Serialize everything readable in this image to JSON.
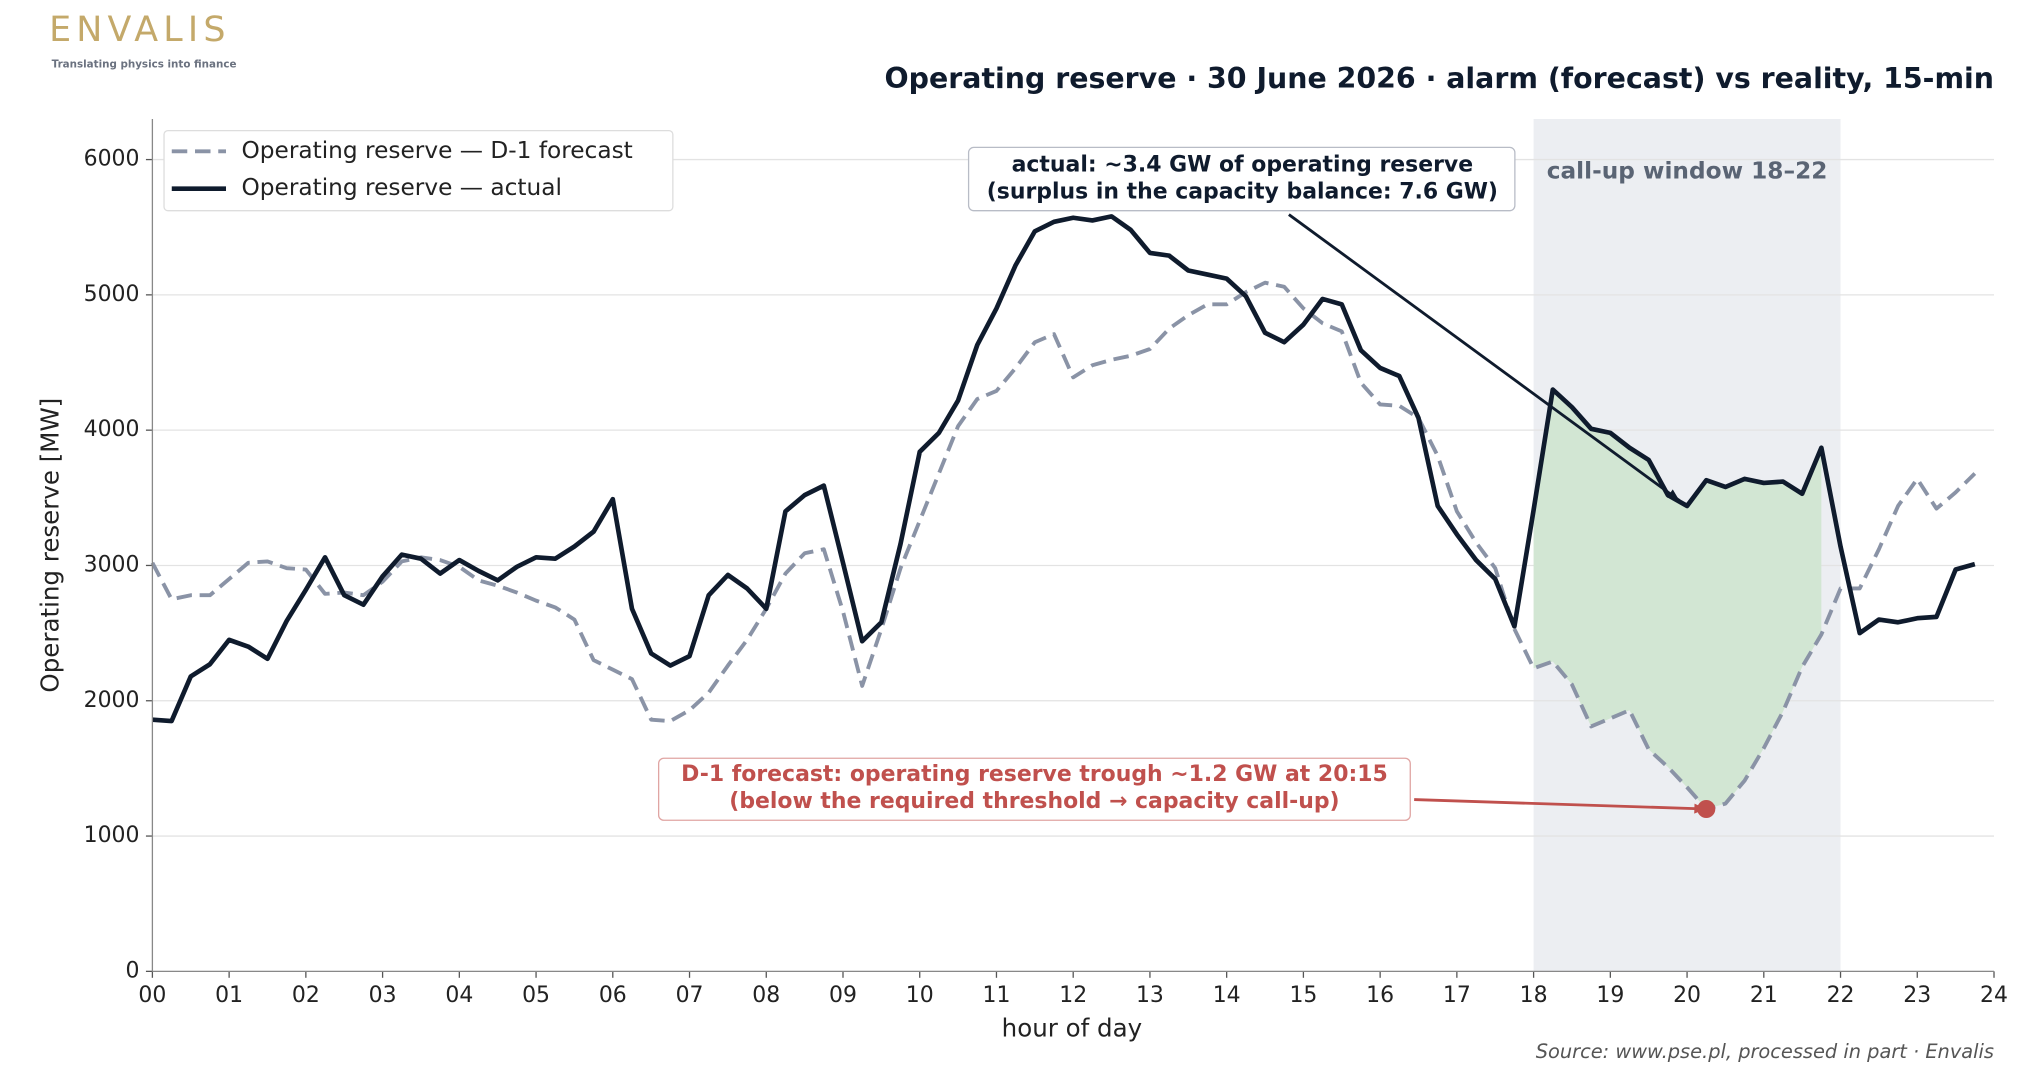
{
  "brand": {
    "name": "ENVALIS",
    "tagline": "Translating physics into finance"
  },
  "chart_data": {
    "type": "line",
    "title": "Operating reserve · 30 June 2026 · alarm (forecast) vs reality, 15-min",
    "x_label": "hour of day",
    "y_label": "Operating reserve [MW]",
    "source": "Source: www.pse.pl, processed in part · Envalis",
    "x": [
      0,
      0.25,
      0.5,
      0.75,
      1,
      1.25,
      1.5,
      1.75,
      2,
      2.25,
      2.5,
      2.75,
      3,
      3.25,
      3.5,
      3.75,
      4,
      4.25,
      4.5,
      4.75,
      5,
      5.25,
      5.5,
      5.75,
      6,
      6.25,
      6.5,
      6.75,
      7,
      7.25,
      7.5,
      7.75,
      8,
      8.25,
      8.5,
      8.75,
      9,
      9.25,
      9.5,
      9.75,
      10,
      10.25,
      10.5,
      10.75,
      11,
      11.25,
      11.5,
      11.75,
      12,
      12.25,
      12.5,
      12.75,
      13,
      13.25,
      13.5,
      13.75,
      14,
      14.25,
      14.5,
      14.75,
      15,
      15.25,
      15.5,
      15.75,
      16,
      16.25,
      16.5,
      16.75,
      17,
      17.25,
      17.5,
      17.75,
      18,
      18.25,
      18.5,
      18.75,
      19,
      19.25,
      19.5,
      19.75,
      20,
      20.25,
      20.5,
      20.75,
      21,
      21.25,
      21.5,
      21.75,
      22,
      22.25,
      22.5,
      22.75,
      23,
      23.25,
      23.5,
      23.75
    ],
    "series": [
      {
        "name": "Operating reserve — D-1 forecast",
        "color": "#8a93a6",
        "dash": true,
        "values": [
          3020,
          2750,
          2780,
          2780,
          2900,
          3020,
          3030,
          2980,
          2970,
          2790,
          2800,
          2780,
          2880,
          3030,
          3060,
          3040,
          2990,
          2890,
          2850,
          2800,
          2740,
          2690,
          2600,
          2300,
          2230,
          2160,
          1860,
          1850,
          1930,
          2060,
          2260,
          2450,
          2680,
          2940,
          3090,
          3120,
          2660,
          2110,
          2530,
          2980,
          3330,
          3680,
          4030,
          4230,
          4290,
          4460,
          4650,
          4710,
          4390,
          4480,
          4520,
          4550,
          4600,
          4750,
          4850,
          4930,
          4930,
          5020,
          5090,
          5060,
          4900,
          4790,
          4730,
          4350,
          4190,
          4180,
          4090,
          3810,
          3400,
          3170,
          2980,
          2530,
          2240,
          2290,
          2120,
          1810,
          1870,
          1930,
          1640,
          1510,
          1360,
          1200,
          1240,
          1410,
          1650,
          1920,
          2250,
          2490,
          2830,
          2830,
          3120,
          3440,
          3640,
          3420,
          3540,
          3680
        ]
      },
      {
        "name": "Operating reserve — actual",
        "color": "#0f1b2d",
        "dash": false,
        "values": [
          1860,
          1850,
          2180,
          2270,
          2450,
          2400,
          2310,
          2590,
          2820,
          3060,
          2780,
          2710,
          2920,
          3080,
          3050,
          2940,
          3040,
          2960,
          2890,
          2990,
          3060,
          3050,
          3140,
          3250,
          3490,
          2680,
          2350,
          2260,
          2330,
          2780,
          2930,
          2830,
          2680,
          3400,
          3520,
          3590,
          3020,
          2440,
          2580,
          3160,
          3840,
          3980,
          4220,
          4630,
          4900,
          5220,
          5470,
          5540,
          5570,
          5550,
          5580,
          5480,
          5310,
          5290,
          5180,
          5150,
          5120,
          4990,
          4720,
          4650,
          4780,
          4970,
          4930,
          4590,
          4460,
          4400,
          4090,
          3440,
          3230,
          3040,
          2900,
          2550,
          3410,
          4300,
          4170,
          4010,
          3980,
          3870,
          3780,
          3520,
          3440,
          3630,
          3580,
          3640,
          3610,
          3620,
          3530,
          3870,
          3140,
          2500,
          2600,
          2580,
          2610,
          2620,
          2970,
          3010
        ]
      }
    ],
    "xlim": [
      0,
      24
    ],
    "ylim": [
      0,
      6300
    ],
    "xticks": [
      {
        "value": 0,
        "label": "00"
      },
      {
        "value": 1,
        "label": "01"
      },
      {
        "value": 2,
        "label": "02"
      },
      {
        "value": 3,
        "label": "03"
      },
      {
        "value": 4,
        "label": "04"
      },
      {
        "value": 5,
        "label": "05"
      },
      {
        "value": 6,
        "label": "06"
      },
      {
        "value": 7,
        "label": "07"
      },
      {
        "value": 8,
        "label": "08"
      },
      {
        "value": 9,
        "label": "09"
      },
      10,
      11,
      12,
      13,
      14,
      15,
      16,
      17,
      18,
      19,
      20,
      21,
      22,
      23,
      24
    ],
    "yticks": [
      0,
      1000,
      2000,
      3000,
      4000,
      5000,
      6000
    ],
    "grid": true,
    "legend": "upper left",
    "shade": {
      "from": 18,
      "to": 22,
      "color": "#eceef2",
      "label": "call-up window 18–22"
    },
    "fill_between": {
      "from": 18,
      "to": 21.75,
      "color": "#d2e6d3"
    },
    "annotations": [
      {
        "lines": [
          "actual: ~3.4 GW of operating reserve",
          "(surplus in the capacity balance: 7.6 GW)"
        ],
        "color": "#0f1b2d",
        "xy": [
          19.9,
          3480
        ]
      },
      {
        "lines": [
          "D-1 forecast: operating reserve trough ~1.2 GW at 20:15",
          "(below the required threshold → capacity call-up)"
        ],
        "color": "#c0504d",
        "xy": [
          20.25,
          1200
        ]
      }
    ]
  }
}
